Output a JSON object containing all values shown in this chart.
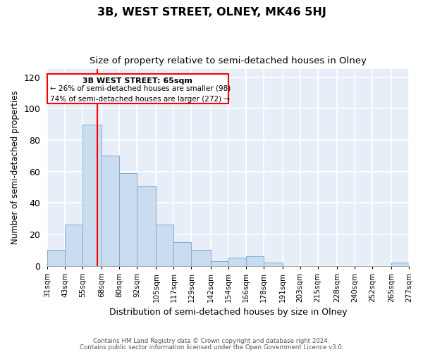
{
  "title": "3B, WEST STREET, OLNEY, MK46 5HJ",
  "subtitle": "Size of property relative to semi-detached houses in Olney",
  "xlabel": "Distribution of semi-detached houses by size in Olney",
  "ylabel": "Number of semi-detached properties",
  "bin_edges": [
    31,
    43,
    55,
    68,
    80,
    92,
    105,
    117,
    129,
    142,
    154,
    166,
    178,
    191,
    203,
    215,
    228,
    240,
    252,
    265,
    277
  ],
  "bar_heights": [
    10,
    26,
    90,
    70,
    59,
    51,
    26,
    15,
    10,
    3,
    5,
    6,
    2,
    0,
    0,
    0,
    0,
    0,
    0,
    2
  ],
  "bar_color": "#c9dcf0",
  "bar_edge_color": "#7bafd4",
  "tick_labels": [
    "31sqm",
    "43sqm",
    "55sqm",
    "68sqm",
    "80sqm",
    "92sqm",
    "105sqm",
    "117sqm",
    "129sqm",
    "142sqm",
    "154sqm",
    "166sqm",
    "178sqm",
    "191sqm",
    "203sqm",
    "215sqm",
    "228sqm",
    "240sqm",
    "252sqm",
    "265sqm",
    "277sqm"
  ],
  "red_line_x": 65,
  "ylim": [
    0,
    125
  ],
  "yticks": [
    0,
    20,
    40,
    60,
    80,
    100,
    120
  ],
  "annotation_title": "3B WEST STREET: 65sqm",
  "annotation_line1": "← 26% of semi-detached houses are smaller (98)",
  "annotation_line2": "74% of semi-detached houses are larger (272) →",
  "footer1": "Contains HM Land Registry data © Crown copyright and database right 2024.",
  "footer2": "Contains public sector information licensed under the Open Government Licence v3.0.",
  "background_color": "#ffffff",
  "plot_bg_color": "#e8eef8",
  "grid_color": "#ffffff"
}
